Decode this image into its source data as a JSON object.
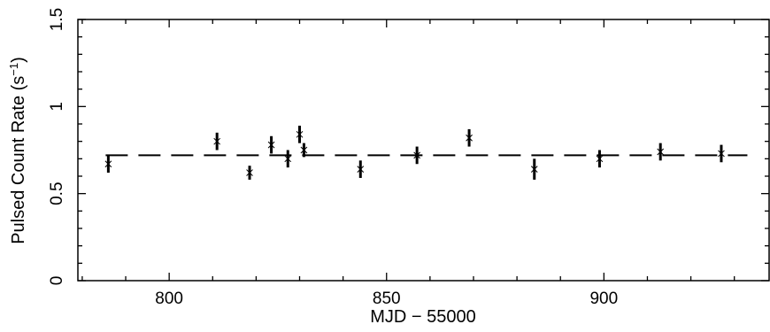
{
  "chart_data": {
    "type": "scatter",
    "xlabel": "MJD −  55000",
    "ylabel": "Pulsed Count Rate (s",
    "ylabel_sup": "−1",
    "ylabel_end": ")",
    "xlim": [
      779,
      938
    ],
    "ylim": [
      0,
      1.5
    ],
    "x_ticks": [
      800,
      850,
      900
    ],
    "x_tick_labels": [
      "800",
      "850",
      "900"
    ],
    "x_minor_step": 10,
    "y_ticks": [
      0,
      0.5,
      1,
      1.5
    ],
    "y_tick_labels": [
      "0",
      "0.5",
      "1",
      "1.5"
    ],
    "y_minor_step": 0.1,
    "mean_level": 0.72,
    "series": [
      {
        "marker": "x",
        "points": [
          {
            "x": 786.0,
            "y": 0.67,
            "err": 0.05
          },
          {
            "x": 811.0,
            "y": 0.8,
            "err": 0.05
          },
          {
            "x": 818.5,
            "y": 0.62,
            "err": 0.04
          },
          {
            "x": 823.5,
            "y": 0.78,
            "err": 0.05
          },
          {
            "x": 827.3,
            "y": 0.7,
            "err": 0.05
          },
          {
            "x": 830.0,
            "y": 0.84,
            "err": 0.05
          },
          {
            "x": 831.0,
            "y": 0.75,
            "err": 0.04
          },
          {
            "x": 844.0,
            "y": 0.64,
            "err": 0.05
          },
          {
            "x": 857.0,
            "y": 0.72,
            "err": 0.05
          },
          {
            "x": 869.0,
            "y": 0.82,
            "err": 0.05
          },
          {
            "x": 884.0,
            "y": 0.64,
            "err": 0.06
          },
          {
            "x": 899.0,
            "y": 0.7,
            "err": 0.05
          },
          {
            "x": 913.0,
            "y": 0.74,
            "err": 0.05
          },
          {
            "x": 927.0,
            "y": 0.73,
            "err": 0.05
          }
        ]
      }
    ],
    "colors": {
      "axis": "#000000",
      "marker": "#000000"
    }
  }
}
